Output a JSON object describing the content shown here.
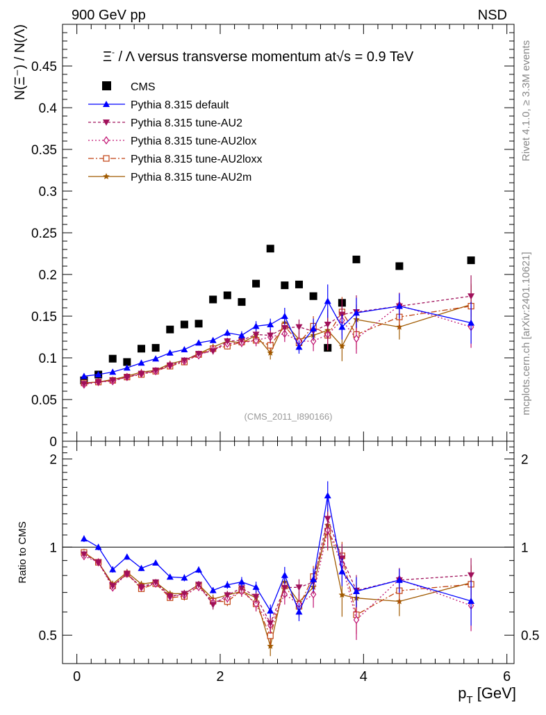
{
  "header": {
    "left": "900 GeV pp",
    "right": "NSD"
  },
  "side_labels": {
    "rivet": "Rivet 4.1.0, ≥ 3.3M events",
    "mcplots": "mcplots.cern.ch [arXiv:2401.10621]"
  },
  "chart_data": {
    "type": "scatter",
    "title_part1": "Ξ",
    "title_sup": "-",
    "title_part2": " / Λ versus transverse momentum at",
    "title_sqrt": "√",
    "title_s": "s",
    "title_part3": " = 0.9 TeV",
    "xlabel_main": "p",
    "xlabel_sub": "T",
    "xlabel_unit": " [GeV]",
    "ylabel": "N(Ξ⁻)  / N(Λ)",
    "ratio_ylabel": "Ratio to CMS",
    "reference_label": "(CMS_2011_I890166)",
    "xlim": [
      -0.2,
      6.1
    ],
    "ylim": [
      0,
      0.5
    ],
    "ratio_ylim": [
      0.4,
      2.3
    ],
    "x_ticks": [
      "0",
      "2",
      "4",
      "6"
    ],
    "y_ticks": [
      "0",
      "0.05",
      "0.1",
      "0.15",
      "0.2",
      "0.25",
      "0.3",
      "0.35",
      "0.4",
      "0.45"
    ],
    "ratio_ticks": [
      "0.5",
      "1",
      "2"
    ],
    "x": [
      0.1,
      0.3,
      0.5,
      0.7,
      0.9,
      1.1,
      1.3,
      1.5,
      1.7,
      1.9,
      2.1,
      2.3,
      2.5,
      2.7,
      2.9,
      3.1,
      3.3,
      3.5,
      3.7,
      3.9,
      4.5,
      5.5
    ],
    "cms": [
      0.073,
      0.08,
      0.099,
      0.095,
      0.111,
      0.112,
      0.134,
      0.14,
      0.141,
      0.17,
      0.175,
      0.167,
      0.189,
      0.231,
      0.187,
      0.188,
      0.174,
      0.112,
      0.166,
      0.218,
      0.21,
      0.217
    ],
    "series": [
      {
        "name": "Pythia 8.315 default",
        "color": "#0000ff",
        "dash": "",
        "marker": "triangle-up",
        "values": [
          0.078,
          0.08,
          0.083,
          0.088,
          0.094,
          0.099,
          0.106,
          0.11,
          0.118,
          0.121,
          0.13,
          0.127,
          0.138,
          0.14,
          0.15,
          0.113,
          0.135,
          0.168,
          0.137,
          0.154,
          0.162,
          0.142
        ],
        "errors": [
          0.002,
          0.002,
          0.002,
          0.002,
          0.002,
          0.002,
          0.002,
          0.003,
          0.003,
          0.003,
          0.004,
          0.005,
          0.006,
          0.007,
          0.01,
          0.008,
          0.012,
          0.02,
          0.015,
          0.018,
          0.015,
          0.025
        ]
      },
      {
        "name": "Pythia 8.315 tune-AU2",
        "color": "#a0105a",
        "dash": "4,3",
        "marker": "triangle-down",
        "values": [
          0.069,
          0.071,
          0.073,
          0.077,
          0.081,
          0.085,
          0.091,
          0.097,
          0.105,
          0.108,
          0.12,
          0.121,
          0.128,
          0.127,
          0.136,
          0.137,
          0.132,
          0.14,
          0.152,
          0.155,
          0.162,
          0.174
        ],
        "errors": [
          0.002,
          0.002,
          0.002,
          0.002,
          0.002,
          0.002,
          0.002,
          0.003,
          0.003,
          0.004,
          0.004,
          0.005,
          0.007,
          0.008,
          0.01,
          0.009,
          0.012,
          0.018,
          0.018,
          0.02,
          0.016,
          0.025
        ]
      },
      {
        "name": "Pythia 8.315 tune-AU2lox",
        "color": "#c01070",
        "dash": "2,3",
        "marker": "diamond",
        "values": [
          0.068,
          0.071,
          0.072,
          0.077,
          0.081,
          0.084,
          0.091,
          0.096,
          0.103,
          0.11,
          0.117,
          0.118,
          0.121,
          0.125,
          0.129,
          0.12,
          0.12,
          0.128,
          0.145,
          0.123,
          0.163,
          0.137
        ],
        "errors": [
          0.002,
          0.002,
          0.002,
          0.002,
          0.002,
          0.002,
          0.002,
          0.003,
          0.003,
          0.004,
          0.004,
          0.005,
          0.007,
          0.008,
          0.01,
          0.01,
          0.012,
          0.018,
          0.018,
          0.018,
          0.015,
          0.025
        ]
      },
      {
        "name": "Pythia 8.315 tune-AU2loxx",
        "color": "#c04010",
        "dash": "8,3,2,3",
        "marker": "square-open",
        "values": [
          0.07,
          0.071,
          0.073,
          0.077,
          0.08,
          0.084,
          0.09,
          0.095,
          0.104,
          0.111,
          0.114,
          0.119,
          0.121,
          0.115,
          0.138,
          0.118,
          0.138,
          0.127,
          0.155,
          0.128,
          0.149,
          0.162
        ],
        "errors": [
          0.002,
          0.002,
          0.002,
          0.002,
          0.002,
          0.002,
          0.002,
          0.003,
          0.003,
          0.004,
          0.004,
          0.005,
          0.007,
          0.008,
          0.01,
          0.01,
          0.012,
          0.018,
          0.018,
          0.018,
          0.015,
          0.025
        ]
      },
      {
        "name": "Pythia 8.315 tune-AU2m",
        "color": "#a05a00",
        "dash": "",
        "marker": "star",
        "values": [
          0.07,
          0.071,
          0.074,
          0.078,
          0.083,
          0.085,
          0.093,
          0.097,
          0.105,
          0.113,
          0.12,
          0.118,
          0.127,
          0.106,
          0.142,
          0.122,
          0.127,
          0.133,
          0.114,
          0.146,
          0.137,
          0.164
        ],
        "errors": [
          0.002,
          0.002,
          0.002,
          0.002,
          0.002,
          0.002,
          0.002,
          0.003,
          0.003,
          0.004,
          0.004,
          0.005,
          0.007,
          0.008,
          0.01,
          0.01,
          0.012,
          0.018,
          0.018,
          0.018,
          0.015,
          0.025
        ]
      }
    ]
  }
}
